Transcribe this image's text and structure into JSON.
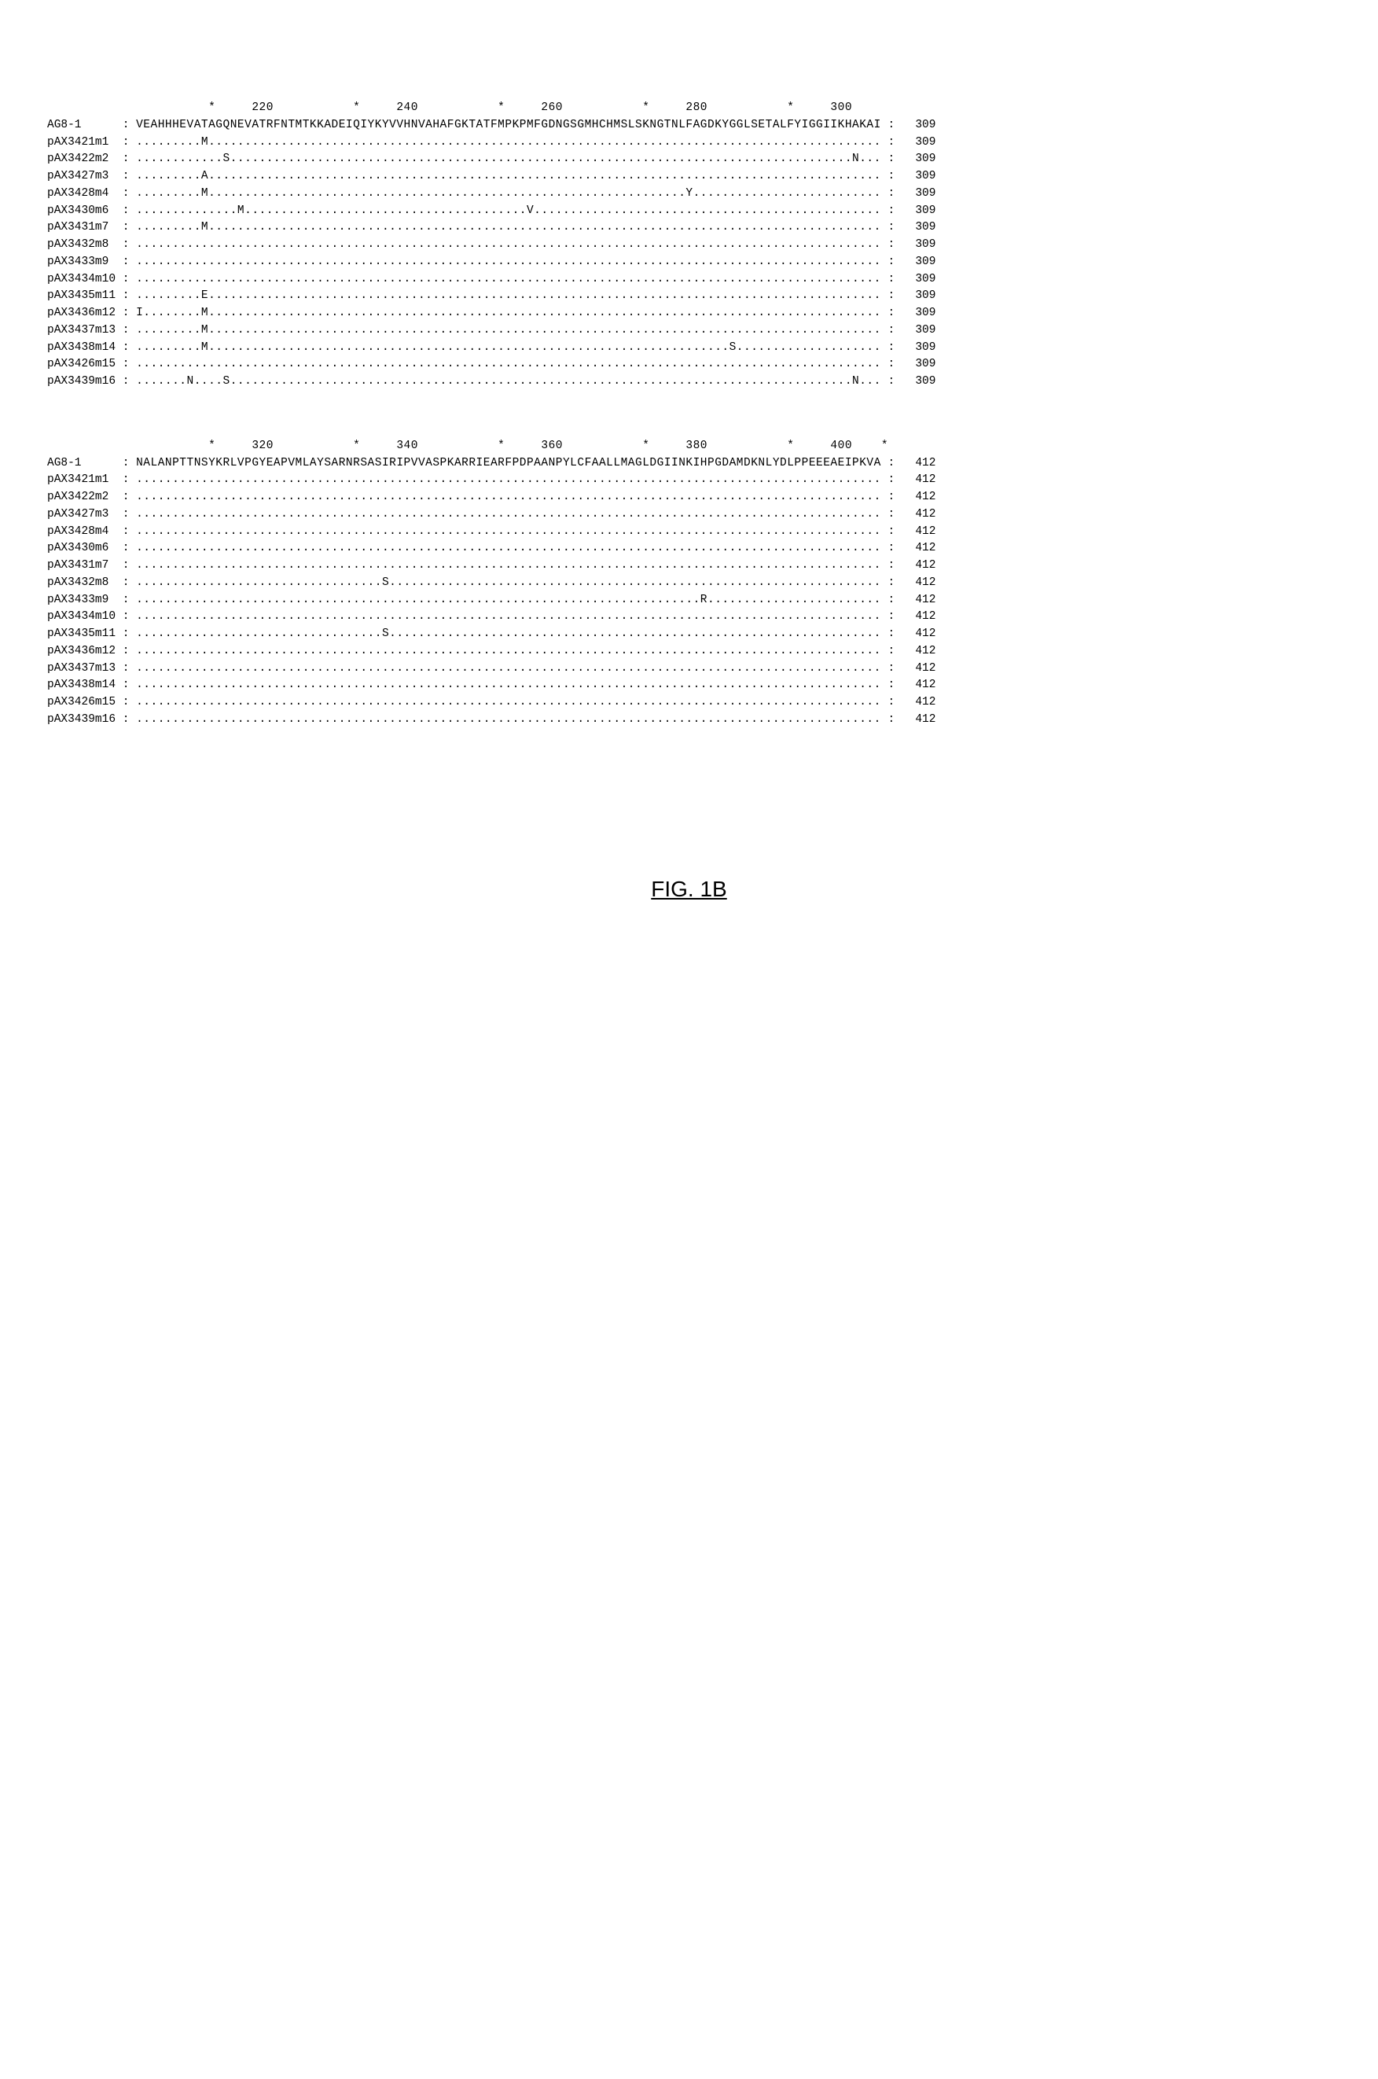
{
  "figure_label": "FIG. 1B",
  "font_family": "Courier New",
  "font_size_pt": 11,
  "background_color": "#ffffff",
  "text_color": "#000000",
  "blocks": [
    {
      "ruler": {
        "marks": [
          "*",
          "220",
          "*",
          "240",
          "*",
          "260",
          "*",
          "280",
          "*",
          "300"
        ],
        "positions": [
          10,
          17,
          30,
          37,
          50,
          57,
          70,
          77,
          90,
          97
        ]
      },
      "end_number": 309,
      "sequences": [
        {
          "label": "AG8-1",
          "seq": "VEAHHHEVATAGQNEVATRFNTMTKKADEIQIYKYVVHNVAHAFGKTATFMPKPMFGDNGSGMHCHMSLSKNGTNLFAGDKYGGLSETALFYIGGIIKHAKAI"
        },
        {
          "label": "pAX3421m1",
          "seq": ".........M............................................................................................."
        },
        {
          "label": "pAX3422m2",
          "seq": "............S......................................................................................N..."
        },
        {
          "label": "pAX3427m3",
          "seq": ".........A............................................................................................."
        },
        {
          "label": "pAX3428m4",
          "seq": ".........M..................................................................Y.........................."
        },
        {
          "label": "pAX3430m6",
          "seq": "..............M.......................................V................................................"
        },
        {
          "label": "pAX3431m7",
          "seq": ".........M............................................................................................."
        },
        {
          "label": "pAX3432m8",
          "seq": "......................................................................................................."
        },
        {
          "label": "pAX3433m9",
          "seq": "......................................................................................................."
        },
        {
          "label": "pAX3434m10",
          "seq": "......................................................................................................."
        },
        {
          "label": "pAX3435m11",
          "seq": ".........E............................................................................................."
        },
        {
          "label": "pAX3436m12",
          "seq": "I........M............................................................................................."
        },
        {
          "label": "pAX3437m13",
          "seq": ".........M............................................................................................."
        },
        {
          "label": "pAX3438m14",
          "seq": ".........M........................................................................S...................."
        },
        {
          "label": "pAX3426m15",
          "seq": "......................................................................................................."
        },
        {
          "label": "pAX3439m16",
          "seq": ".......N....S......................................................................................N..."
        }
      ]
    },
    {
      "ruler": {
        "marks": [
          "*",
          "320",
          "*",
          "340",
          "*",
          "360",
          "*",
          "380",
          "*",
          "400",
          "*"
        ],
        "positions": [
          10,
          17,
          30,
          37,
          50,
          57,
          70,
          77,
          90,
          97,
          103
        ]
      },
      "end_number": 412,
      "sequences": [
        {
          "label": "AG8-1",
          "seq": "NALANPTTNSYKRLVPGYEAPVMLAYSARNRSASIRIPVVASPKARRIEARFPDPAANPYLCFAALLMAGLDGIINKIHPGDAMDKNLYDLPPEEEAEIPKVA"
        },
        {
          "label": "pAX3421m1",
          "seq": "......................................................................................................."
        },
        {
          "label": "pAX3422m2",
          "seq": "......................................................................................................."
        },
        {
          "label": "pAX3427m3",
          "seq": "......................................................................................................."
        },
        {
          "label": "pAX3428m4",
          "seq": "......................................................................................................."
        },
        {
          "label": "pAX3430m6",
          "seq": "......................................................................................................."
        },
        {
          "label": "pAX3431m7",
          "seq": "......................................................................................................."
        },
        {
          "label": "pAX3432m8",
          "seq": "..................................S...................................................................."
        },
        {
          "label": "pAX3433m9",
          "seq": "..............................................................................R........................"
        },
        {
          "label": "pAX3434m10",
          "seq": "......................................................................................................."
        },
        {
          "label": "pAX3435m11",
          "seq": "..................................S...................................................................."
        },
        {
          "label": "pAX3436m12",
          "seq": "......................................................................................................."
        },
        {
          "label": "pAX3437m13",
          "seq": "......................................................................................................."
        },
        {
          "label": "pAX3438m14",
          "seq": "......................................................................................................."
        },
        {
          "label": "pAX3426m15",
          "seq": "......................................................................................................."
        },
        {
          "label": "pAX3439m16",
          "seq": "......................................................................................................."
        }
      ]
    }
  ]
}
